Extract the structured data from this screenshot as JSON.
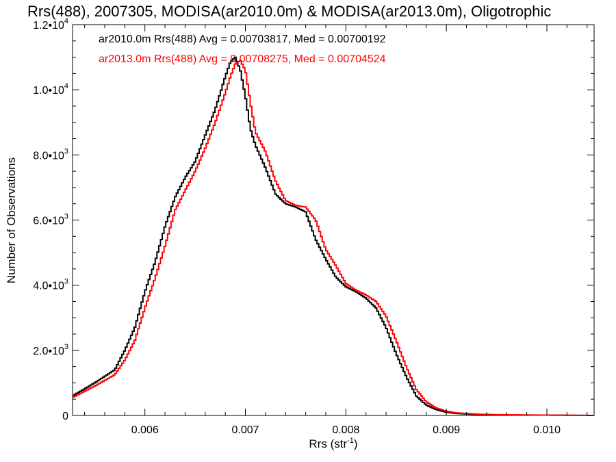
{
  "chart_data": {
    "type": "line",
    "style": "step-histogram",
    "title": "Rrs(488), 2007305, MODISA(ar2010.0m) & MODISA(ar2013.0m), Oligotrophic",
    "xlabel": "Rrs (str",
    "xlabel_superscript": "-1",
    "xlabel_suffix": ")",
    "ylabel": "Number of Observations",
    "xlim": [
      0.00528,
      0.01047
    ],
    "ylim": [
      0,
      12000
    ],
    "x_ticks": [
      {
        "value": 0.006,
        "label": "0.006"
      },
      {
        "value": 0.007,
        "label": "0.007"
      },
      {
        "value": 0.008,
        "label": "0.008"
      },
      {
        "value": 0.009,
        "label": "0.009"
      },
      {
        "value": 0.01,
        "label": "0.010"
      }
    ],
    "y_ticks": [
      {
        "value": 0,
        "label": "0",
        "sup": ""
      },
      {
        "value": 2000,
        "label": "2.0•10",
        "sup": "3"
      },
      {
        "value": 4000,
        "label": "4.0•10",
        "sup": "3"
      },
      {
        "value": 6000,
        "label": "6.0•10",
        "sup": "3"
      },
      {
        "value": 8000,
        "label": "8.0•10",
        "sup": "3"
      },
      {
        "value": 10000,
        "label": "1.0•10",
        "sup": "4"
      },
      {
        "value": 12000,
        "label": "1.2•10",
        "sup": "4"
      }
    ],
    "grid": false,
    "legend_position": "top-left",
    "series": [
      {
        "name": "ar2010.0m Rrs(488) Avg = 0.00703817, Med = 0.00700192",
        "color": "#000000",
        "x": [
          0.00528,
          0.0055,
          0.0057,
          0.0058,
          0.0059,
          0.006,
          0.0061,
          0.0062,
          0.0063,
          0.0064,
          0.0065,
          0.0066,
          0.0067,
          0.0068,
          0.00685,
          0.0069,
          0.00695,
          0.007,
          0.00705,
          0.0071,
          0.0072,
          0.0073,
          0.0074,
          0.0075,
          0.0076,
          0.0077,
          0.0078,
          0.0079,
          0.008,
          0.0081,
          0.0082,
          0.0083,
          0.0084,
          0.0085,
          0.0086,
          0.0087,
          0.0088,
          0.0089,
          0.009,
          0.0091,
          0.0093,
          0.0095,
          0.0098,
          0.01,
          0.01047
        ],
        "y": [
          600,
          1000,
          1400,
          2000,
          2700,
          3800,
          4700,
          5800,
          6700,
          7300,
          7800,
          8600,
          9400,
          10400,
          10850,
          11000,
          10600,
          9800,
          8800,
          8300,
          7600,
          6800,
          6500,
          6400,
          6250,
          5400,
          4800,
          4250,
          3950,
          3800,
          3600,
          3300,
          2700,
          1900,
          1200,
          600,
          320,
          180,
          100,
          60,
          30,
          20,
          10,
          10,
          0
        ]
      },
      {
        "name": "ar2013.0m Rrs(488) Avg = 0.00708275, Med = 0.00704524",
        "color": "#ff0000",
        "x": [
          0.00528,
          0.0055,
          0.0057,
          0.0058,
          0.0059,
          0.006,
          0.0061,
          0.0062,
          0.0063,
          0.0064,
          0.0065,
          0.0066,
          0.0067,
          0.0068,
          0.00685,
          0.0069,
          0.00695,
          0.007,
          0.00705,
          0.0071,
          0.0072,
          0.0073,
          0.0074,
          0.0075,
          0.0076,
          0.0077,
          0.0078,
          0.0079,
          0.008,
          0.0081,
          0.0082,
          0.0083,
          0.0084,
          0.0085,
          0.0086,
          0.0087,
          0.0088,
          0.0089,
          0.009,
          0.0091,
          0.0093,
          0.0095,
          0.0098,
          0.01,
          0.01047
        ],
        "y": [
          550,
          900,
          1250,
          1700,
          2300,
          3300,
          4200,
          5200,
          6300,
          6900,
          7500,
          8200,
          9000,
          9900,
          10400,
          10800,
          10900,
          10600,
          9600,
          8700,
          8100,
          7200,
          6600,
          6450,
          6400,
          6000,
          5100,
          4600,
          4050,
          3850,
          3700,
          3500,
          3050,
          2300,
          1500,
          800,
          420,
          230,
          130,
          80,
          40,
          25,
          15,
          10,
          0
        ]
      }
    ]
  }
}
